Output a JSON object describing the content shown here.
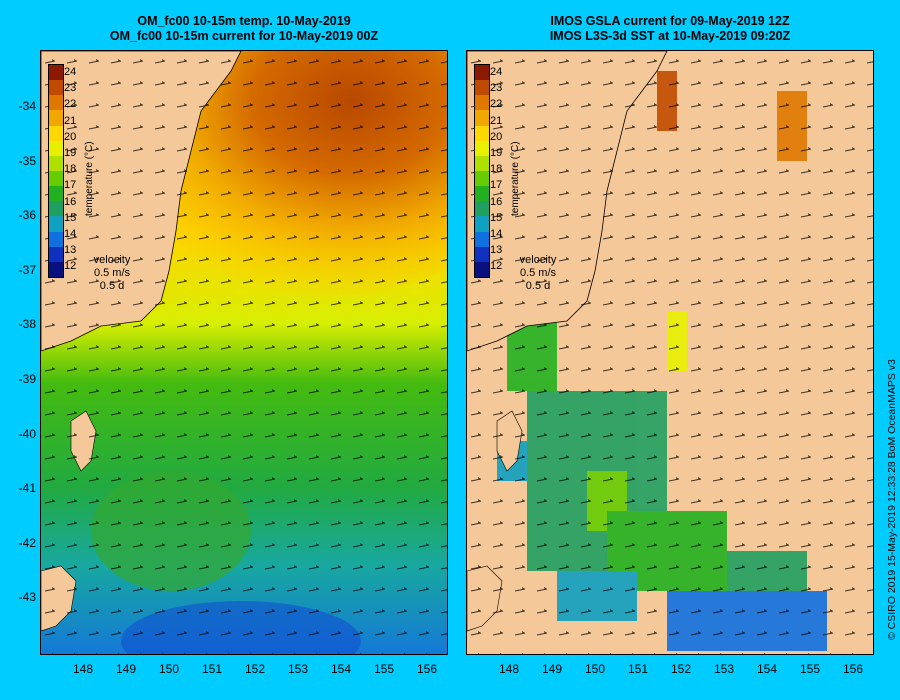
{
  "left_panel": {
    "title_line1": "OM_fc00 10-15m temp. 10-May-2019",
    "title_line2": "OM_fc00 10-15m current for 10-May-2019 00Z"
  },
  "right_panel": {
    "title_line1": "IMOS GSLA current for 09-May-2019 12Z",
    "title_line2": "IMOS L3S-3d SST at 10-May-2019 09:20Z"
  },
  "lat_labels": [
    "-34",
    "-35",
    "-36",
    "-37",
    "-38",
    "-39",
    "-40",
    "-41",
    "-42",
    "-43"
  ],
  "lon_labels": [
    "148",
    "149",
    "150",
    "151",
    "152",
    "153",
    "154",
    "155",
    "156"
  ],
  "colorbar": {
    "ticks": [
      "24",
      "23",
      "22",
      "21",
      "20",
      "19",
      "18",
      "17",
      "16",
      "15",
      "14",
      "13",
      "12"
    ],
    "title": "temperature (°C)",
    "colors": [
      "#8b1a00",
      "#c04a00",
      "#e07800",
      "#f0a800",
      "#ffd800",
      "#e8f000",
      "#b0e000",
      "#66cc00",
      "#22b020",
      "#20a060",
      "#10a0c0",
      "#1070e0",
      "#1030c0",
      "#0a1080"
    ]
  },
  "velocity_key": {
    "label": "velocity",
    "speed": "0.5 m/s",
    "duration": "0.5 d"
  },
  "credit": "© CSIRO 2019   15-May-2019 12:33:28 BoM OceanMAPS v3",
  "colors": {
    "background": "#00ccff",
    "land": "#f5c89a",
    "coastline": "#000000"
  }
}
